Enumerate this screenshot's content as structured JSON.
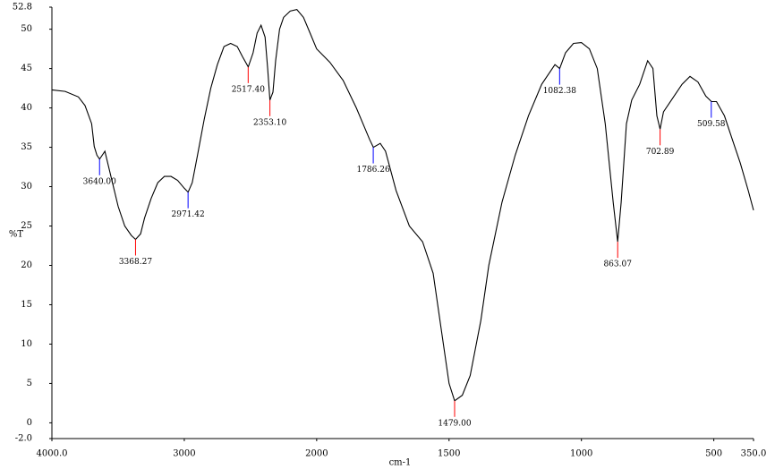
{
  "chart_data": {
    "type": "line",
    "ylabel": "%T",
    "xlabel": "cm-1",
    "xlim": [
      4000,
      350
    ],
    "ylim": [
      -2,
      52.8
    ],
    "x_scale_break": 2000,
    "xticks": [
      {
        "value": 4000,
        "label": "4000.0"
      },
      3000,
      2000,
      1500,
      1000,
      500,
      {
        "value": 350,
        "label": "350.0"
      }
    ],
    "yticks": [
      52.8,
      50,
      45,
      40,
      35,
      30,
      25,
      20,
      15,
      10,
      5,
      0,
      {
        "value": -2,
        "label": "-2.0"
      }
    ],
    "color": "#000000",
    "x": [
      4000,
      3900,
      3800,
      3750,
      3700,
      3680,
      3660,
      3640,
      3600,
      3550,
      3500,
      3450,
      3400,
      3368,
      3330,
      3300,
      3250,
      3200,
      3150,
      3100,
      3050,
      3000,
      2971,
      2940,
      2900,
      2850,
      2800,
      2750,
      2700,
      2650,
      2600,
      2560,
      2517,
      2480,
      2450,
      2420,
      2390,
      2370,
      2353,
      2330,
      2310,
      2280,
      2250,
      2200,
      2150,
      2100,
      2050,
      2000,
      1950,
      1900,
      1850,
      1800,
      1786,
      1760,
      1740,
      1700,
      1650,
      1600,
      1560,
      1530,
      1500,
      1479,
      1450,
      1420,
      1380,
      1350,
      1300,
      1250,
      1200,
      1150,
      1100,
      1082,
      1060,
      1030,
      1000,
      970,
      940,
      910,
      880,
      863,
      850,
      830,
      810,
      780,
      750,
      730,
      715,
      703,
      690,
      670,
      650,
      620,
      590,
      560,
      530,
      509,
      490,
      460,
      430,
      400,
      370,
      350
    ],
    "values": [
      42.3,
      42.1,
      41.4,
      40.3,
      38.0,
      35.1,
      34.0,
      33.5,
      34.5,
      31,
      27.5,
      25,
      23.8,
      23.3,
      24,
      26,
      28.5,
      30.5,
      31.3,
      31.3,
      30.8,
      29.8,
      29.3,
      30.5,
      34,
      38.5,
      42.5,
      45.5,
      47.8,
      48.2,
      47.8,
      46.5,
      45.2,
      47,
      49.5,
      50.5,
      49,
      45,
      41,
      42,
      46,
      50,
      51.5,
      52.3,
      52.5,
      51.5,
      49.5,
      47.5,
      45.8,
      43.5,
      40,
      36,
      35.0,
      35.5,
      34.5,
      29.5,
      25,
      23,
      19,
      12,
      5,
      2.8,
      3.5,
      6,
      13,
      20,
      28,
      34,
      39,
      43,
      45.5,
      45.0,
      47,
      48.2,
      48.3,
      47.5,
      45,
      38,
      28,
      23.0,
      28,
      38,
      41,
      43,
      46,
      45,
      39,
      37.3,
      39.5,
      40.5,
      41.5,
      43,
      44,
      43.3,
      41.5,
      40.8,
      40.8,
      39,
      36,
      33,
      29.5,
      27.0
    ],
    "peaks": [
      {
        "x": {
          "value": 3640,
          "label": "3640.00"
        },
        "y": 33.5,
        "color": "#0000ff"
      },
      {
        "x": {
          "value": 3368.27,
          "label": "3368.27"
        },
        "y": 23.3,
        "color": "#ff0000"
      },
      {
        "x": {
          "value": 2971.42,
          "label": "2971.42"
        },
        "y": 29.3,
        "color": "#0000ff"
      },
      {
        "x": {
          "value": 2517.4,
          "label": "2517.40"
        },
        "y": 45.2,
        "color": "#ff0000"
      },
      {
        "x": {
          "value": 2353.1,
          "label": "2353.10"
        },
        "y": 41,
        "color": "#ff0000"
      },
      {
        "x": {
          "value": 1786.26,
          "label": "1786.26"
        },
        "y": 35.0,
        "color": "#0000ff"
      },
      {
        "x": {
          "value": 1479,
          "label": "1479.00"
        },
        "y": 2.8,
        "color": "#ff0000"
      },
      {
        "x": {
          "value": 1082.38,
          "label": "1082.38"
        },
        "y": 45.0,
        "color": "#0000ff"
      },
      {
        "x": {
          "value": 863.07,
          "label": "863.07"
        },
        "y": 23.0,
        "color": "#ff0000"
      },
      {
        "x": {
          "value": 702.89,
          "label": "702.89"
        },
        "y": 37.3,
        "color": "#ff0000"
      },
      {
        "x": {
          "value": 509.58,
          "label": "509.58"
        },
        "y": 40.8,
        "color": "#0000ff"
      }
    ]
  }
}
